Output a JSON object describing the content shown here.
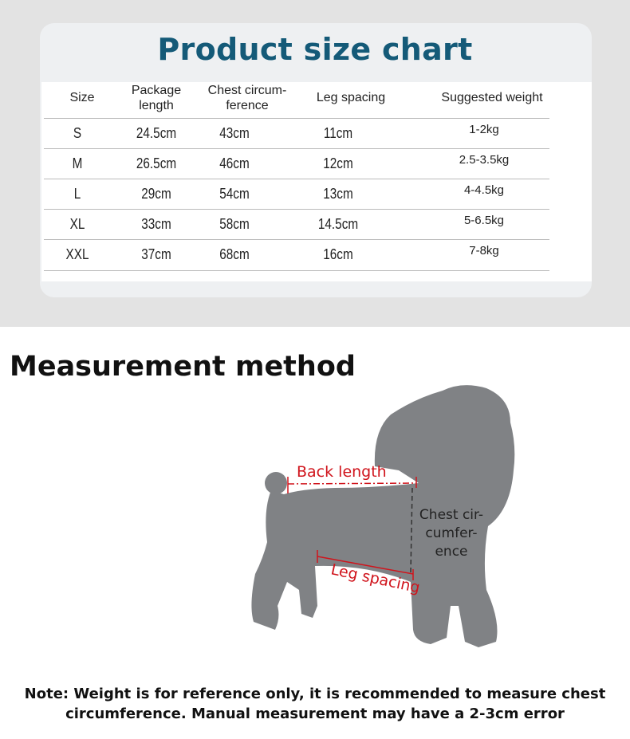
{
  "chart_title": "Product size chart",
  "headers": [
    "Size",
    "Package length",
    "Chest circum-ference",
    "Leg spacing",
    "Suggested weight"
  ],
  "header_lines": [
    [
      "Size"
    ],
    [
      "Package",
      "length"
    ],
    [
      "Chest circum-",
      "ference"
    ],
    [
      "Leg spacing"
    ],
    [
      "Suggested weight"
    ]
  ],
  "rows": [
    [
      "S",
      "24.5cm",
      "43cm",
      "11cm",
      "1-2kg"
    ],
    [
      "M",
      "26.5cm",
      "46cm",
      "12cm",
      "2.5-3.5kg"
    ],
    [
      "L",
      "29cm",
      "54cm",
      "13cm",
      "4-4.5kg"
    ],
    [
      "XL",
      "33cm",
      "58cm",
      "14.5cm",
      "5-6.5kg"
    ],
    [
      "XXL",
      "37cm",
      "68cm",
      "16cm",
      "7-8kg"
    ]
  ],
  "measurement_title": "Measurement method",
  "diagram": {
    "back_length": "Back length",
    "chest_lines": [
      "Chest cir-",
      "cumfer-",
      "ence"
    ],
    "leg_spacing": "Leg spacing",
    "dog_color": "#808285",
    "label_color": "#d0141c"
  },
  "note_lines": [
    "Note: Weight is for reference only, it is recommended to measure chest",
    "circumference. Manual measurement may have a 2-3cm error"
  ],
  "colors": {
    "title": "#145a78"
  }
}
